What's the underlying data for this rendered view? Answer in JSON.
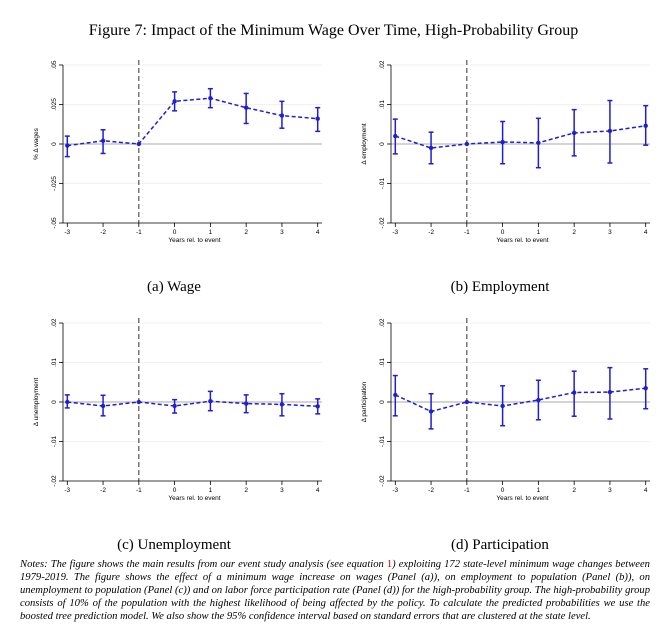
{
  "figure_title": "Figure 7: Impact of the Minimum Wage Over Time, High-Probability Group",
  "notes": {
    "before_ref": "Notes: The figure shows the main results from our event study analysis (see equation ",
    "ref": "1",
    "after_ref": ") exploiting 172 state-level minimum wage changes between 1979-2019. The figure shows the effect of a minimum wage increase on wages (Panel (a)), on employment to population (Panel (b)), on unemployment to population (Panel (c)) and on labor force participation rate (Panel (d)) for the high-probability group. The high-probability group consists of 10% of the population with the highest likelihood of being affected by the policy. To calculate the predicted probabilities we use the boosted tree prediction model. We also show the 95% confidence interval based on standard errors that are clustered at the state level."
  },
  "colors": {
    "series": "#1f1fd0",
    "zero_line": "#aaaaaa",
    "grid": "#ececec",
    "event_line": "#333333"
  },
  "chart_data": [
    {
      "type": "line",
      "caption": "(a) Wage",
      "x": [
        -3,
        -2,
        -1,
        0,
        1,
        2,
        3,
        4
      ],
      "y": [
        -0.001,
        0.002,
        0,
        0.027,
        0.029,
        0.023,
        0.018,
        0.016
      ],
      "ci_low": [
        -0.008,
        -0.006,
        0,
        0.021,
        0.023,
        0.013,
        0.01,
        0.008
      ],
      "ci_high": [
        0.005,
        0.009,
        0,
        0.033,
        0.035,
        0.032,
        0.027,
        0.023
      ],
      "xlabel": "Years rel. to event",
      "ylabel": "% Δ wages",
      "yticks": [
        -0.05,
        -0.025,
        0,
        0.025,
        0.05
      ],
      "ytick_labels": [
        "-.05",
        "-.025",
        "0",
        ".025",
        ".05"
      ],
      "ylim": [
        -0.05,
        0.05
      ],
      "xlim": [
        -3,
        4
      ],
      "event_line_x": -1,
      "grid": true
    },
    {
      "type": "line",
      "caption": "(b) Employment",
      "x": [
        -3,
        -2,
        -1,
        0,
        1,
        2,
        3,
        4
      ],
      "y": [
        0.002,
        -0.001,
        0,
        0.0005,
        0.0003,
        0.0028,
        0.0033,
        0.0046
      ],
      "ci_low": [
        -0.0025,
        -0.005,
        0,
        -0.005,
        -0.006,
        -0.003,
        -0.0048,
        -0.0003
      ],
      "ci_high": [
        0.0063,
        0.003,
        0,
        0.0057,
        0.0065,
        0.0087,
        0.011,
        0.0097
      ],
      "xlabel": "Years rel. to event",
      "ylabel": "Δ employment",
      "yticks": [
        -0.02,
        -0.01,
        0,
        0.01,
        0.02
      ],
      "ytick_labels": [
        "-.02",
        "-.01",
        "0",
        ".01",
        ".02"
      ],
      "ylim": [
        -0.02,
        0.02
      ],
      "xlim": [
        -3,
        4
      ],
      "event_line_x": -1,
      "grid": true
    },
    {
      "type": "line",
      "caption": "(c) Unemployment",
      "x": [
        -3,
        -2,
        -1,
        0,
        1,
        2,
        3,
        4
      ],
      "y": [
        0,
        -0.001,
        0,
        -0.001,
        0.0002,
        -0.0004,
        -0.0006,
        -0.0011
      ],
      "ci_low": [
        -0.0015,
        -0.0035,
        0,
        -0.0028,
        -0.0022,
        -0.0027,
        -0.0035,
        -0.003
      ],
      "ci_high": [
        0.0018,
        0.0017,
        0,
        0.0006,
        0.0027,
        0.0018,
        0.0021,
        0.0008
      ],
      "xlabel": "Years rel. to event",
      "ylabel": "Δ unemployment",
      "yticks": [
        -0.02,
        -0.01,
        0,
        0.01,
        0.02
      ],
      "ytick_labels": [
        "-.02",
        "-.01",
        "0",
        ".01",
        ".02"
      ],
      "ylim": [
        -0.02,
        0.02
      ],
      "xlim": [
        -3,
        4
      ],
      "event_line_x": -1,
      "grid": true
    },
    {
      "type": "line",
      "caption": "(d) Participation",
      "x": [
        -3,
        -2,
        -1,
        0,
        1,
        2,
        3,
        4
      ],
      "y": [
        0.0018,
        -0.0024,
        0,
        -0.001,
        0.0005,
        0.0024,
        0.0025,
        0.0035
      ],
      "ci_low": [
        -0.0035,
        -0.0068,
        0,
        -0.006,
        -0.0045,
        -0.0036,
        -0.0043,
        -0.0017
      ],
      "ci_high": [
        0.0067,
        0.0021,
        0,
        0.0041,
        0.0055,
        0.0078,
        0.0087,
        0.0084
      ],
      "xlabel": "Years rel. to event",
      "ylabel": "Δ participation",
      "yticks": [
        -0.02,
        -0.01,
        0,
        0.01,
        0.02
      ],
      "ytick_labels": [
        "-.02",
        "-.01",
        "0",
        ".01",
        ".02"
      ],
      "ylim": [
        -0.02,
        0.02
      ],
      "xlim": [
        -3,
        4
      ],
      "event_line_x": -1,
      "grid": true
    }
  ]
}
